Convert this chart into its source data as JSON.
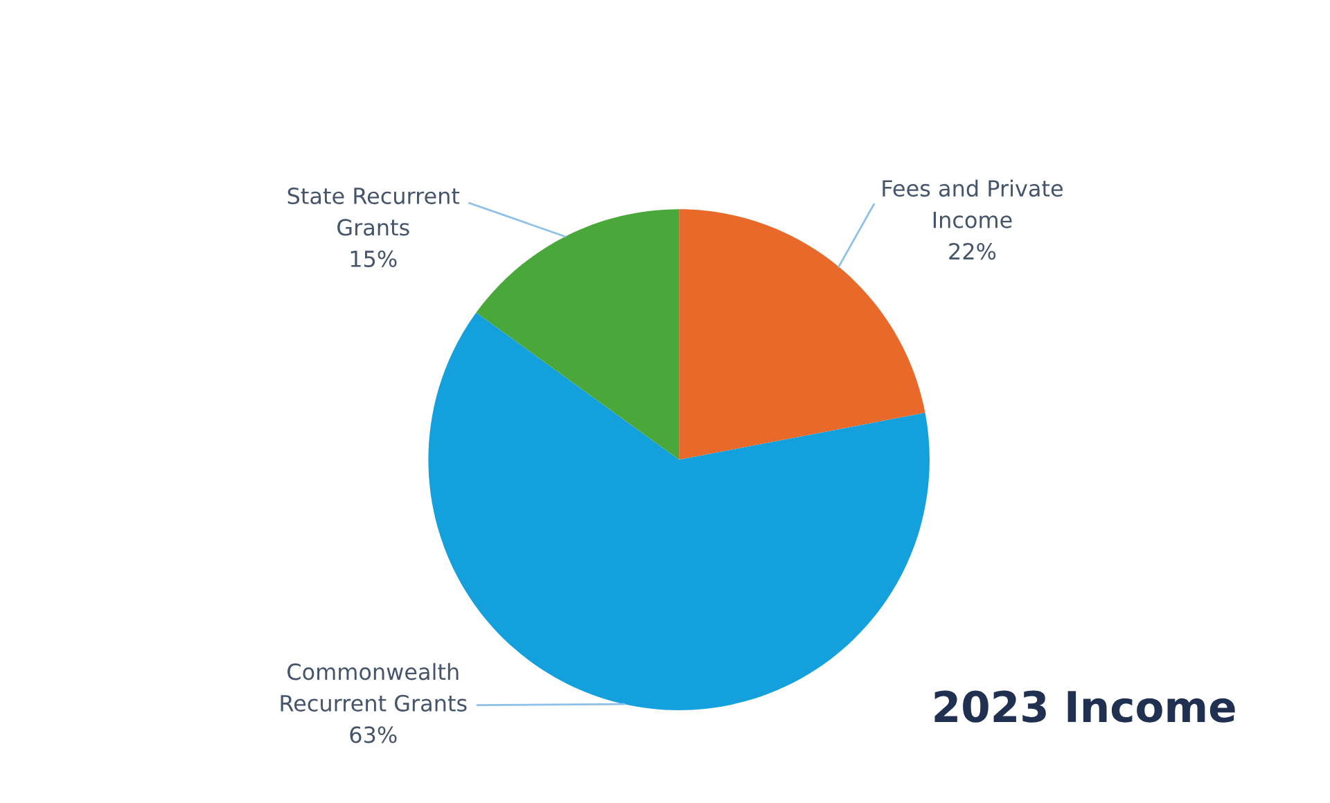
{
  "chart_data": {
    "type": "pie",
    "title": "2023 Income",
    "categories": [
      "Fees and Private\nIncome",
      "Commonwealth\nRecurrent Grants",
      "State Recurrent\nGrants"
    ],
    "values": [
      22,
      63,
      15
    ],
    "colors": [
      "#e8692a",
      "#14a0dc",
      "#4aa83a"
    ],
    "value_labels": [
      "22%",
      "63%",
      "15%"
    ]
  }
}
